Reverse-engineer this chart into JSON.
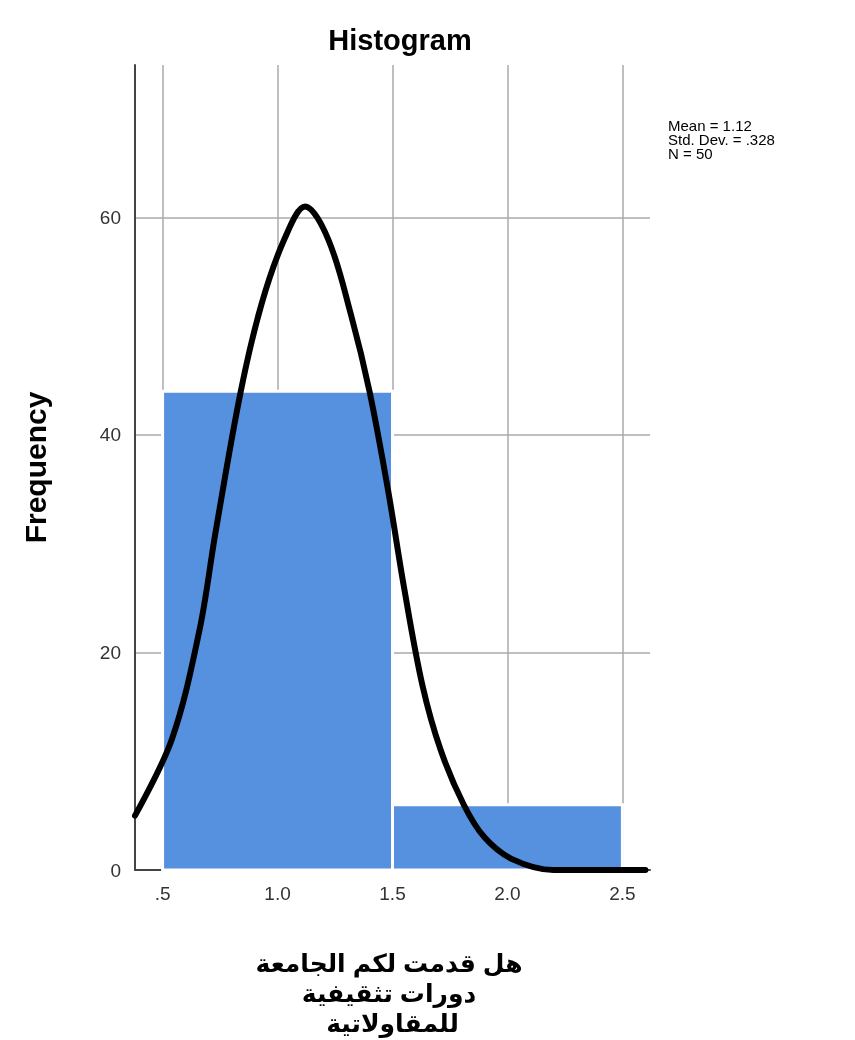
{
  "chart_data": {
    "type": "histogram",
    "title": "Histogram",
    "xlabel": "هل قدمت لكم الجامعة دورات تثقيفية للمقاولاتية",
    "ylabel": "Frequency",
    "bins": [
      0.5,
      1.5,
      2.5
    ],
    "values": [
      44,
      6
    ],
    "color": "#5591df",
    "series": [
      {
        "type": "line",
        "color": "#000000",
        "x": [
          0.38,
          0.54,
          0.66,
          0.73,
          0.84,
          0.93,
          1.03,
          1.12,
          1.22,
          1.32,
          1.4,
          1.48,
          1.55,
          1.63,
          1.71,
          1.81,
          1.9,
          2.02,
          2.2,
          2.6
        ],
        "values": [
          5,
          12,
          22,
          31,
          44,
          52,
          58,
          61,
          58,
          51,
          44,
          35,
          26,
          17,
          11,
          6,
          3,
          1,
          0,
          0
        ]
      }
    ],
    "xlim": [
      0.38,
      2.62
    ],
    "xticks": [
      {
        "value": 0.5,
        "label": ".5"
      },
      {
        "value": 1,
        "label": "1.0"
      },
      {
        "value": 1.5,
        "label": "1.5"
      },
      {
        "value": 2,
        "label": "2.0"
      },
      {
        "value": 2.5,
        "label": "2.5"
      }
    ],
    "ylim": [
      0,
      74
    ],
    "yticks": [
      0,
      20,
      40,
      60
    ],
    "grid": true,
    "marker": "none",
    "line_style": "solid",
    "annotations": [
      "Mean = 1.12",
      "Std. Dev. = .328",
      "N = 50"
    ]
  }
}
